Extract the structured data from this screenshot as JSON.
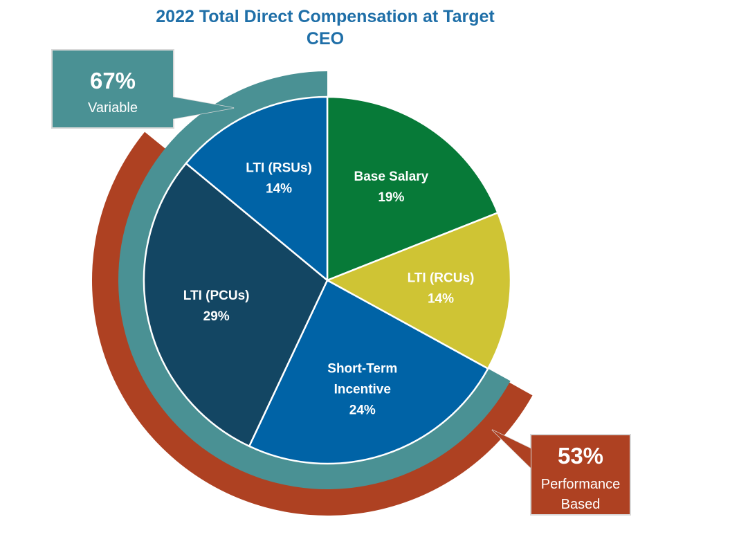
{
  "chart_data": {
    "type": "pie",
    "title": "2022 Total Direct Compensation at Target",
    "subtitle": "CEO",
    "slices": [
      {
        "name": "Base Salary",
        "label_lines": [
          "Base Salary"
        ],
        "value": 19,
        "value_label": "19%",
        "color": "#077a38"
      },
      {
        "name": "LTI (RCUs)",
        "label_lines": [
          "LTI (RCUs)"
        ],
        "value": 14,
        "value_label": "14%",
        "color": "#cfc434"
      },
      {
        "name": "Short-Term Incentive",
        "label_lines": [
          "Short-Term",
          "Incentive"
        ],
        "value": 24,
        "value_label": "24%",
        "color": "#0063a6"
      },
      {
        "name": "LTI (PCUs)",
        "label_lines": [
          "LTI (PCUs)"
        ],
        "value": 29,
        "value_label": "29%",
        "color": "#134663"
      },
      {
        "name": "LTI (RSUs)",
        "label_lines": [
          "LTI (RSUs)"
        ],
        "value": 14,
        "value_label": "14%",
        "color": "#0063a6"
      }
    ],
    "groupings": [
      {
        "name": "variable",
        "percent_label": "67%",
        "label_lines": [
          "Variable"
        ],
        "value": 67,
        "color": "#4a9194"
      },
      {
        "name": "performance-based",
        "percent_label": "53%",
        "label_lines": [
          "Performance",
          "Based"
        ],
        "value": 53,
        "color": "#ae4122"
      }
    ]
  }
}
